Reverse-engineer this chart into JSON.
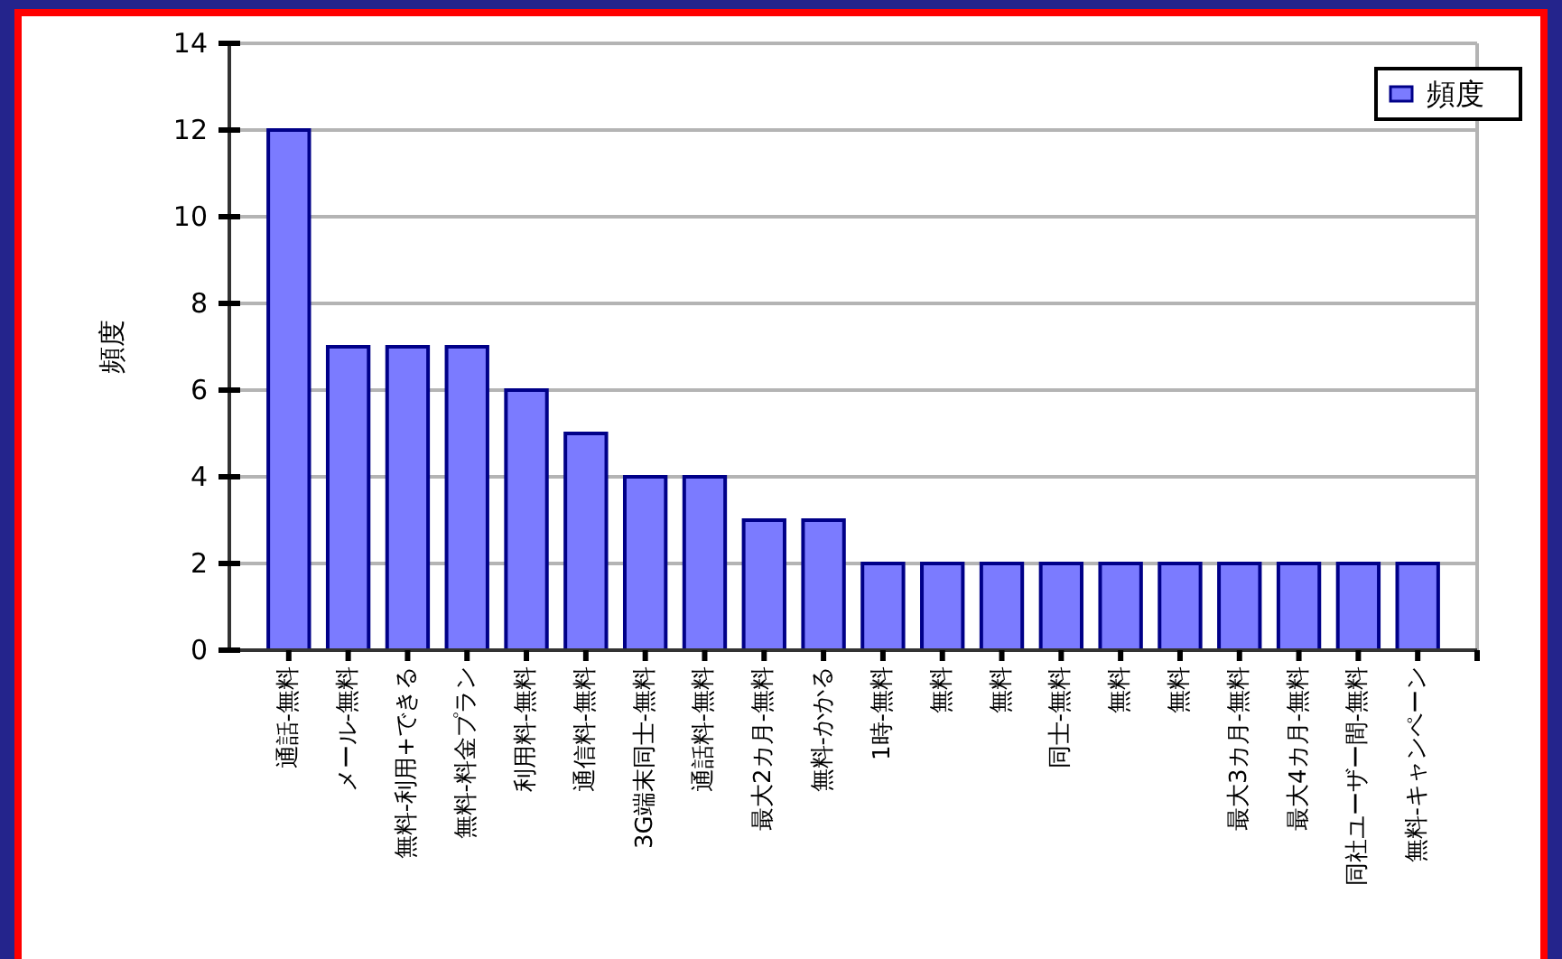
{
  "chart_data": {
    "type": "bar",
    "categories": [
      "通話-無料",
      "メール-無料",
      "無料-利用+できる",
      "無料-料金プラン",
      "利用料-無料",
      "通信料-無料",
      "3G端末同士-無料",
      "通話料-無料",
      "最大2カ月-無料",
      "無料-かかる",
      "1時-無料",
      "無料",
      "無料",
      "同士-無料",
      "無料",
      "無料",
      "最大3カ月-無料",
      "最大4カ月-無料",
      "同社ユーザー間-無料",
      "無料-キャンペーン"
    ],
    "series": [
      {
        "name": "頻度",
        "color": "#7b7bff",
        "values": [
          12,
          7,
          7,
          7,
          6,
          5,
          4,
          4,
          3,
          3,
          2,
          2,
          2,
          2,
          2,
          2,
          2,
          2,
          2,
          2
        ]
      }
    ],
    "ylabel": "頻度",
    "ylim": [
      0,
      14
    ],
    "yticks": [
      0,
      2,
      4,
      6,
      8,
      10,
      12,
      14
    ],
    "grid": "y",
    "legend": "top right"
  }
}
